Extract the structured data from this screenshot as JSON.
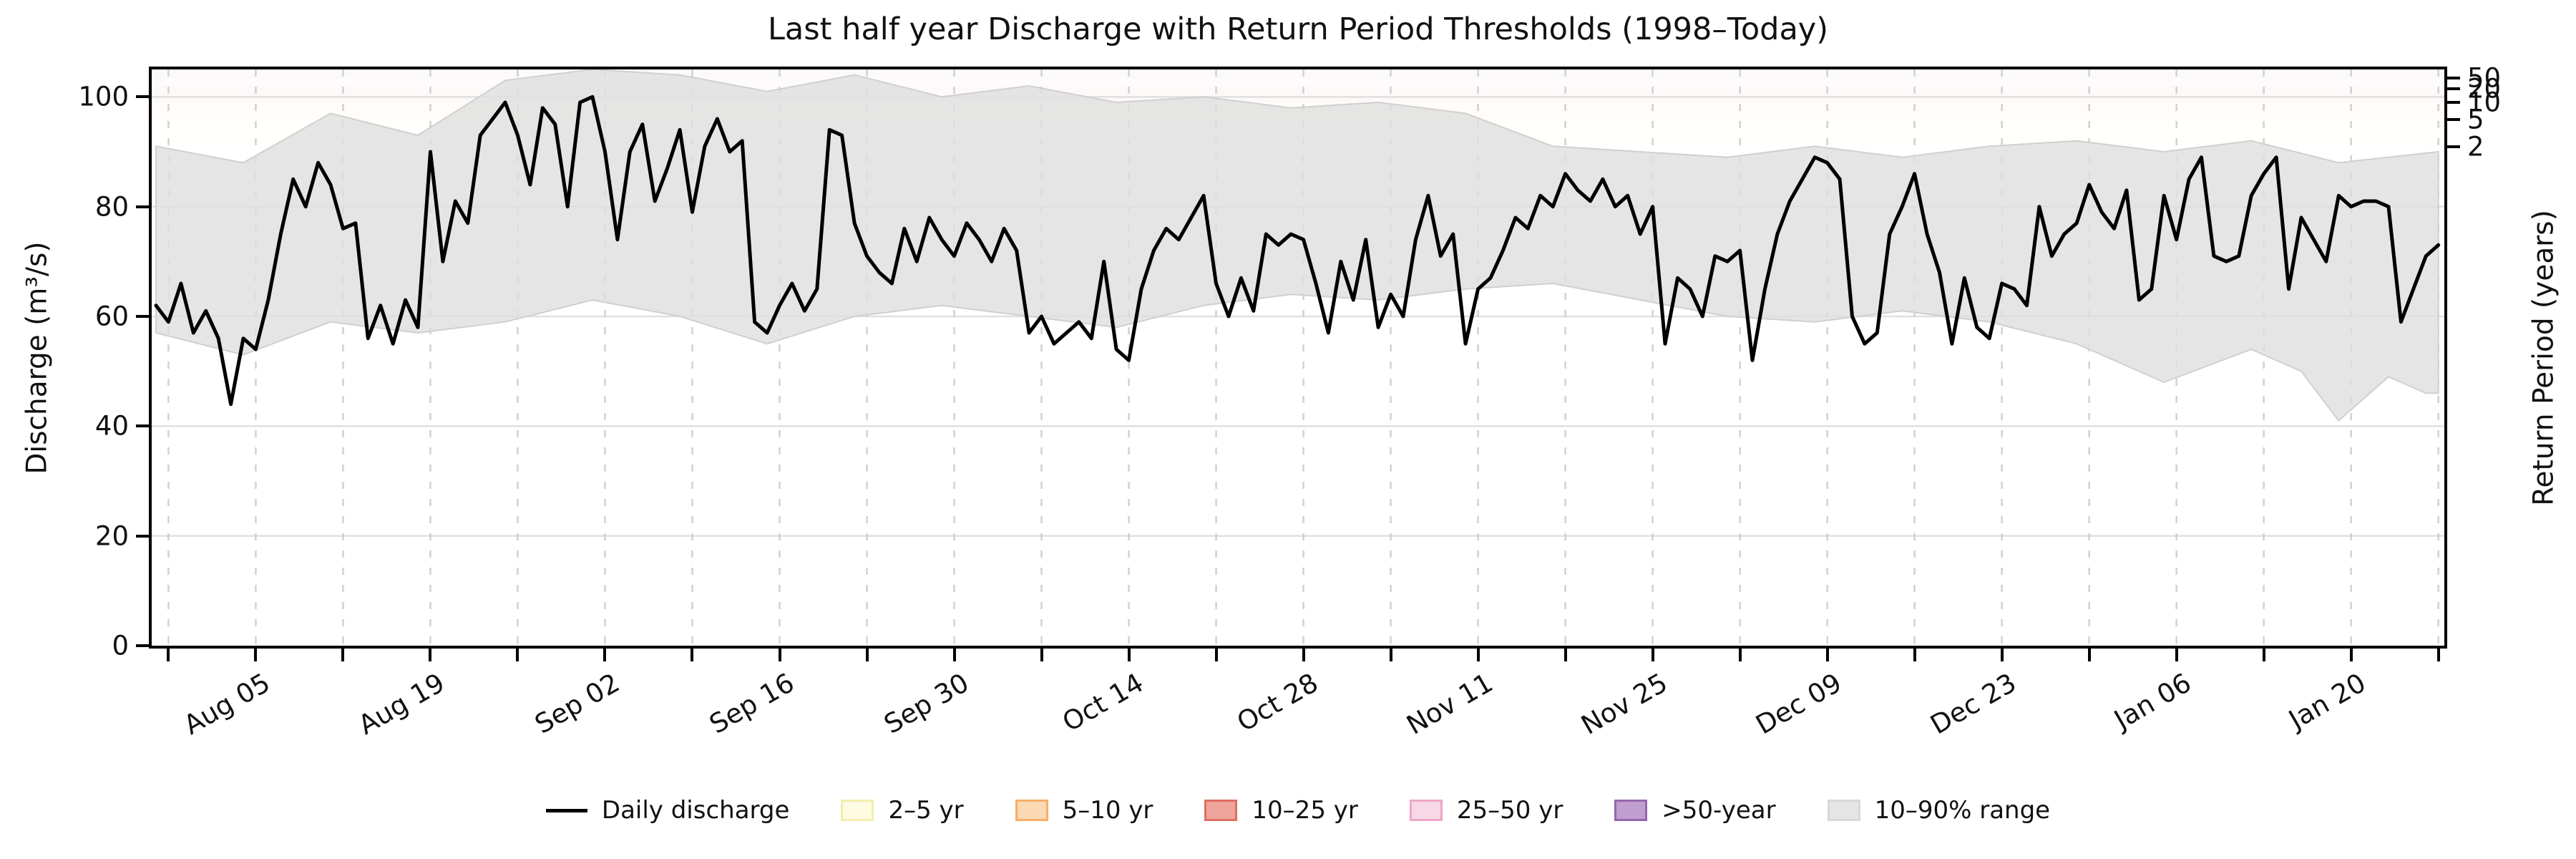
{
  "title": "Last half year Discharge with Return Period Thresholds (1998–Today)",
  "axes": {
    "left_label": "Discharge (m³/s)",
    "right_label": "Return Period (years)",
    "left_ticks": [
      0,
      20,
      40,
      60,
      80,
      100
    ],
    "x_tick_labels": [
      "Aug 05",
      "Aug 19",
      "Sep 02",
      "Sep 16",
      "Sep 30",
      "Oct 14",
      "Oct 28",
      "Nov 11",
      "Nov 25",
      "Dec 09",
      "Dec 23",
      "Jan 06",
      "Jan 20"
    ],
    "right_ticks": [
      {
        "label": "50",
        "discharge": 103.4
      },
      {
        "label": "20",
        "discharge": 101.5
      },
      {
        "label": "10",
        "discharge": 99.0
      },
      {
        "label": "5",
        "discharge": 95.9
      },
      {
        "label": "2",
        "discharge": 90.9
      }
    ]
  },
  "legend": [
    {
      "label": "Daily discharge",
      "swatch": "line",
      "fill": "#000000",
      "edge": "#000000"
    },
    {
      "label": "2–5 yr",
      "swatch": "patch",
      "fill": "#fdfbe1",
      "edge": "#f3edae"
    },
    {
      "label": "5–10 yr",
      "swatch": "patch",
      "fill": "#fbd9b4",
      "edge": "#f5af68"
    },
    {
      "label": "10–25 yr",
      "swatch": "patch",
      "fill": "#f0a59c",
      "edge": "#dd6f62"
    },
    {
      "label": "25–50 yr",
      "swatch": "patch",
      "fill": "#f8d7e7",
      "edge": "#eea6c8"
    },
    {
      "label": ">50-year",
      "swatch": "patch",
      "fill": "#c09ed0",
      "edge": "#9467ad"
    },
    {
      "label": "10–90% range",
      "swatch": "patch",
      "fill": "#e5e5e5",
      "edge": "#d8d8d8"
    }
  ],
  "colors": {
    "line": "#000000",
    "band_fill": "#dedede",
    "band_edge": "#d0d0d0",
    "grid_h": "#d9d9d9",
    "grid_v": "#c9c9c9",
    "threshold_band_colors": [
      "#fdf9c4",
      "#fdc980",
      "#f08a80",
      "#f5b6d4",
      "#b48cc8"
    ]
  },
  "chart_data": {
    "type": "line",
    "title": "Last half year Discharge with Return Period Thresholds (1998–Today)",
    "xlabel": "",
    "ylabel": "Discharge (m³/s)",
    "ylabel_right": "Return Period (years)",
    "ylim": [
      0,
      105
    ],
    "x_unit": "day_index (0 = Jul 28, 183 = Jan 27)",
    "x_days_total": 184,
    "grid": "horizontal solid + weekly vertical dashed",
    "legend_position": "bottom center, horizontal",
    "weekly_grid_start_day": 1,
    "weekly_grid_step": 7,
    "label_start_day": 8,
    "label_step": 14,
    "daily_discharge": [
      62,
      59,
      66,
      57,
      61,
      56,
      44,
      56,
      54,
      63,
      75,
      85,
      80,
      88,
      84,
      76,
      77,
      56,
      62,
      55,
      63,
      58,
      90,
      70,
      81,
      77,
      93,
      96,
      99,
      93,
      84,
      98,
      95,
      80,
      99,
      100,
      90,
      74,
      90,
      95,
      81,
      87,
      94,
      79,
      91,
      96,
      90,
      92,
      59,
      57,
      62,
      66,
      61,
      65,
      94,
      93,
      77,
      71,
      68,
      66,
      76,
      70,
      78,
      74,
      71,
      77,
      74,
      70,
      76,
      72,
      57,
      60,
      55,
      57,
      59,
      56,
      70,
      54,
      52,
      65,
      72,
      76,
      74,
      78,
      82,
      66,
      60,
      67,
      61,
      75,
      73,
      75,
      74,
      66,
      57,
      70,
      63,
      74,
      58,
      64,
      60,
      74,
      82,
      71,
      75,
      55,
      65,
      67,
      72,
      78,
      76,
      82,
      80,
      86,
      83,
      81,
      85,
      80,
      82,
      75,
      80,
      55,
      67,
      65,
      60,
      71,
      70,
      72,
      52,
      65,
      75,
      81,
      85,
      89,
      88,
      85,
      60,
      55,
      57,
      75,
      80,
      86,
      75,
      68,
      55,
      67,
      58,
      56,
      66,
      65,
      62,
      80,
      71,
      75,
      77,
      84,
      79,
      76,
      83,
      63,
      65,
      82,
      74,
      85,
      89,
      71,
      70,
      71,
      82,
      86,
      89,
      65,
      78,
      74,
      70,
      82,
      80,
      81,
      81,
      80,
      59,
      65,
      71,
      73
    ],
    "band_10_90_upper": [
      [
        0,
        91
      ],
      [
        7,
        88
      ],
      [
        14,
        97
      ],
      [
        21,
        93
      ],
      [
        28,
        103
      ],
      [
        35,
        105
      ],
      [
        42,
        104
      ],
      [
        49,
        101
      ],
      [
        56,
        104
      ],
      [
        63,
        100
      ],
      [
        70,
        102
      ],
      [
        77,
        99
      ],
      [
        84,
        100
      ],
      [
        91,
        98
      ],
      [
        98,
        99
      ],
      [
        105,
        97
      ],
      [
        112,
        91
      ],
      [
        119,
        90
      ],
      [
        126,
        89
      ],
      [
        133,
        91
      ],
      [
        140,
        89
      ],
      [
        147,
        91
      ],
      [
        154,
        92
      ],
      [
        161,
        90
      ],
      [
        168,
        92
      ],
      [
        175,
        88
      ],
      [
        183,
        90
      ]
    ],
    "band_10_90_lower": [
      [
        0,
        57
      ],
      [
        7,
        53
      ],
      [
        14,
        59
      ],
      [
        21,
        57
      ],
      [
        28,
        59
      ],
      [
        35,
        63
      ],
      [
        42,
        60
      ],
      [
        49,
        55
      ],
      [
        56,
        60
      ],
      [
        63,
        62
      ],
      [
        70,
        60
      ],
      [
        77,
        58
      ],
      [
        84,
        62
      ],
      [
        91,
        64
      ],
      [
        98,
        63
      ],
      [
        105,
        65
      ],
      [
        112,
        66
      ],
      [
        119,
        63
      ],
      [
        126,
        60
      ],
      [
        133,
        59
      ],
      [
        140,
        61
      ],
      [
        147,
        59
      ],
      [
        154,
        55
      ],
      [
        161,
        48
      ],
      [
        168,
        54
      ],
      [
        172,
        50
      ],
      [
        175,
        41
      ],
      [
        179,
        49
      ],
      [
        182,
        46
      ],
      [
        183,
        46
      ]
    ],
    "return_period_thresholds": [
      {
        "return_period_years": 2,
        "discharge": 90.9
      },
      {
        "return_period_years": 5,
        "discharge": 95.9
      },
      {
        "return_period_years": 10,
        "discharge": 99.0
      },
      {
        "return_period_years": 25,
        "discharge": 102.0
      },
      {
        "return_period_years": 50,
        "discharge": 103.4
      }
    ],
    "threshold_bands": [
      {
        "range": "2–5 yr",
        "lo": 90.9,
        "hi": 95.9
      },
      {
        "range": "5–10 yr",
        "lo": 95.9,
        "hi": 99.0
      },
      {
        "range": "10–25 yr",
        "lo": 99.0,
        "hi": 102.0
      },
      {
        "range": "25–50 yr",
        "lo": 102.0,
        "hi": 103.4
      },
      {
        "range": ">50-year",
        "lo": 103.4,
        "hi": 105.0
      }
    ]
  }
}
